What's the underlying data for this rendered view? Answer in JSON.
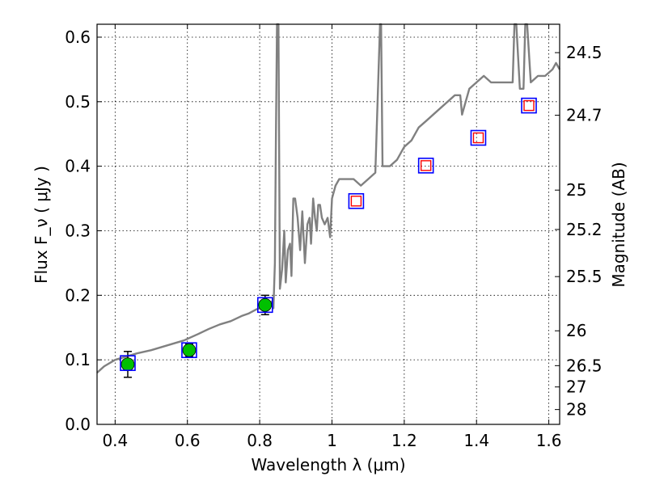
{
  "chart_data": {
    "type": "scatter",
    "title": "",
    "xlabel": "Wavelength  λ (μm)",
    "ylabel": "Flux  F_ν ( μJy )",
    "ylabel_right": "Magnitude (AB)",
    "xlim": [
      0.35,
      1.63
    ],
    "ylim": [
      0.0,
      0.62
    ],
    "grid": true,
    "x_ticks": [
      0.4,
      0.6,
      0.8,
      1.0,
      1.2,
      1.4,
      1.6
    ],
    "x_tick_labels": [
      "0.4",
      "0.6",
      "0.8",
      "1",
      "1.2",
      "1.4",
      "1.6"
    ],
    "y_ticks": [
      0.0,
      0.1,
      0.2,
      0.3,
      0.4,
      0.5,
      0.6
    ],
    "y_tick_labels": [
      "0.0",
      "0.1",
      "0.2",
      "0.3",
      "0.4",
      "0.5",
      "0.6"
    ],
    "right_ticks": [
      {
        "label": "24.5",
        "flux": 0.576
      },
      {
        "label": "24.7",
        "flux": 0.479
      },
      {
        "label": "25",
        "flux": 0.363
      },
      {
        "label": "25.2",
        "flux": 0.302
      },
      {
        "label": "25.5",
        "flux": 0.229
      },
      {
        "label": "26",
        "flux": 0.145
      },
      {
        "label": "26.5",
        "flux": 0.091
      },
      {
        "label": "27",
        "flux": 0.058
      },
      {
        "label": "28",
        "flux": 0.023
      }
    ],
    "colors": {
      "spectrum": "#808080",
      "photometry_fill": "#00c000",
      "model_box": "#0000ff",
      "upper_box": "#ff0000",
      "errorbar": "#000000"
    },
    "series": [
      {
        "kind": "spectrum",
        "x": [
          0.35,
          0.37,
          0.4,
          0.43,
          0.46,
          0.5,
          0.53,
          0.56,
          0.59,
          0.61,
          0.63,
          0.66,
          0.69,
          0.72,
          0.75,
          0.77,
          0.79,
          0.8,
          0.82,
          0.832,
          0.838,
          0.842,
          0.845,
          0.848,
          0.852,
          0.856,
          0.862,
          0.868,
          0.872,
          0.878,
          0.884,
          0.888,
          0.893,
          0.898,
          0.905,
          0.912,
          0.918,
          0.925,
          0.932,
          0.938,
          0.942,
          0.948,
          0.953,
          0.958,
          0.962,
          0.967,
          0.972,
          0.98,
          0.988,
          0.995,
          1.0,
          1.01,
          1.02,
          1.04,
          1.06,
          1.08,
          1.1,
          1.12,
          1.133,
          1.136,
          1.14,
          1.16,
          1.18,
          1.2,
          1.22,
          1.24,
          1.26,
          1.28,
          1.3,
          1.32,
          1.34,
          1.355,
          1.36,
          1.38,
          1.4,
          1.42,
          1.44,
          1.46,
          1.48,
          1.5,
          1.505,
          1.51,
          1.52,
          1.53,
          1.535,
          1.54,
          1.55,
          1.57,
          1.59,
          1.61,
          1.62,
          1.63
        ],
        "y": [
          0.08,
          0.09,
          0.1,
          0.105,
          0.11,
          0.115,
          0.12,
          0.125,
          0.13,
          0.135,
          0.14,
          0.148,
          0.155,
          0.16,
          0.168,
          0.172,
          0.178,
          0.18,
          0.185,
          0.19,
          0.18,
          0.25,
          0.45,
          0.62,
          0.62,
          0.21,
          0.24,
          0.3,
          0.22,
          0.27,
          0.28,
          0.23,
          0.35,
          0.35,
          0.32,
          0.27,
          0.33,
          0.25,
          0.31,
          0.32,
          0.28,
          0.35,
          0.32,
          0.3,
          0.34,
          0.34,
          0.32,
          0.31,
          0.32,
          0.29,
          0.35,
          0.37,
          0.38,
          0.38,
          0.38,
          0.37,
          0.38,
          0.39,
          0.62,
          0.62,
          0.4,
          0.4,
          0.41,
          0.43,
          0.44,
          0.46,
          0.47,
          0.48,
          0.49,
          0.5,
          0.51,
          0.51,
          0.48,
          0.52,
          0.53,
          0.54,
          0.53,
          0.53,
          0.53,
          0.53,
          0.62,
          0.62,
          0.52,
          0.52,
          0.62,
          0.62,
          0.53,
          0.54,
          0.54,
          0.55,
          0.56,
          0.55
        ]
      },
      {
        "kind": "photometry",
        "x": [
          0.435,
          0.605,
          0.815
        ],
        "y": [
          0.093,
          0.115,
          0.185
        ],
        "yerr": [
          0.02,
          0.01,
          0.015
        ]
      },
      {
        "kind": "model",
        "x": [
          0.435,
          0.605,
          0.815,
          1.067,
          1.26,
          1.405,
          1.545
        ],
        "y": [
          0.095,
          0.115,
          0.185,
          0.346,
          0.401,
          0.444,
          0.494
        ]
      },
      {
        "kind": "upper",
        "x": [
          1.067,
          1.26,
          1.405,
          1.545
        ],
        "y": [
          0.346,
          0.401,
          0.444,
          0.494
        ]
      }
    ]
  }
}
